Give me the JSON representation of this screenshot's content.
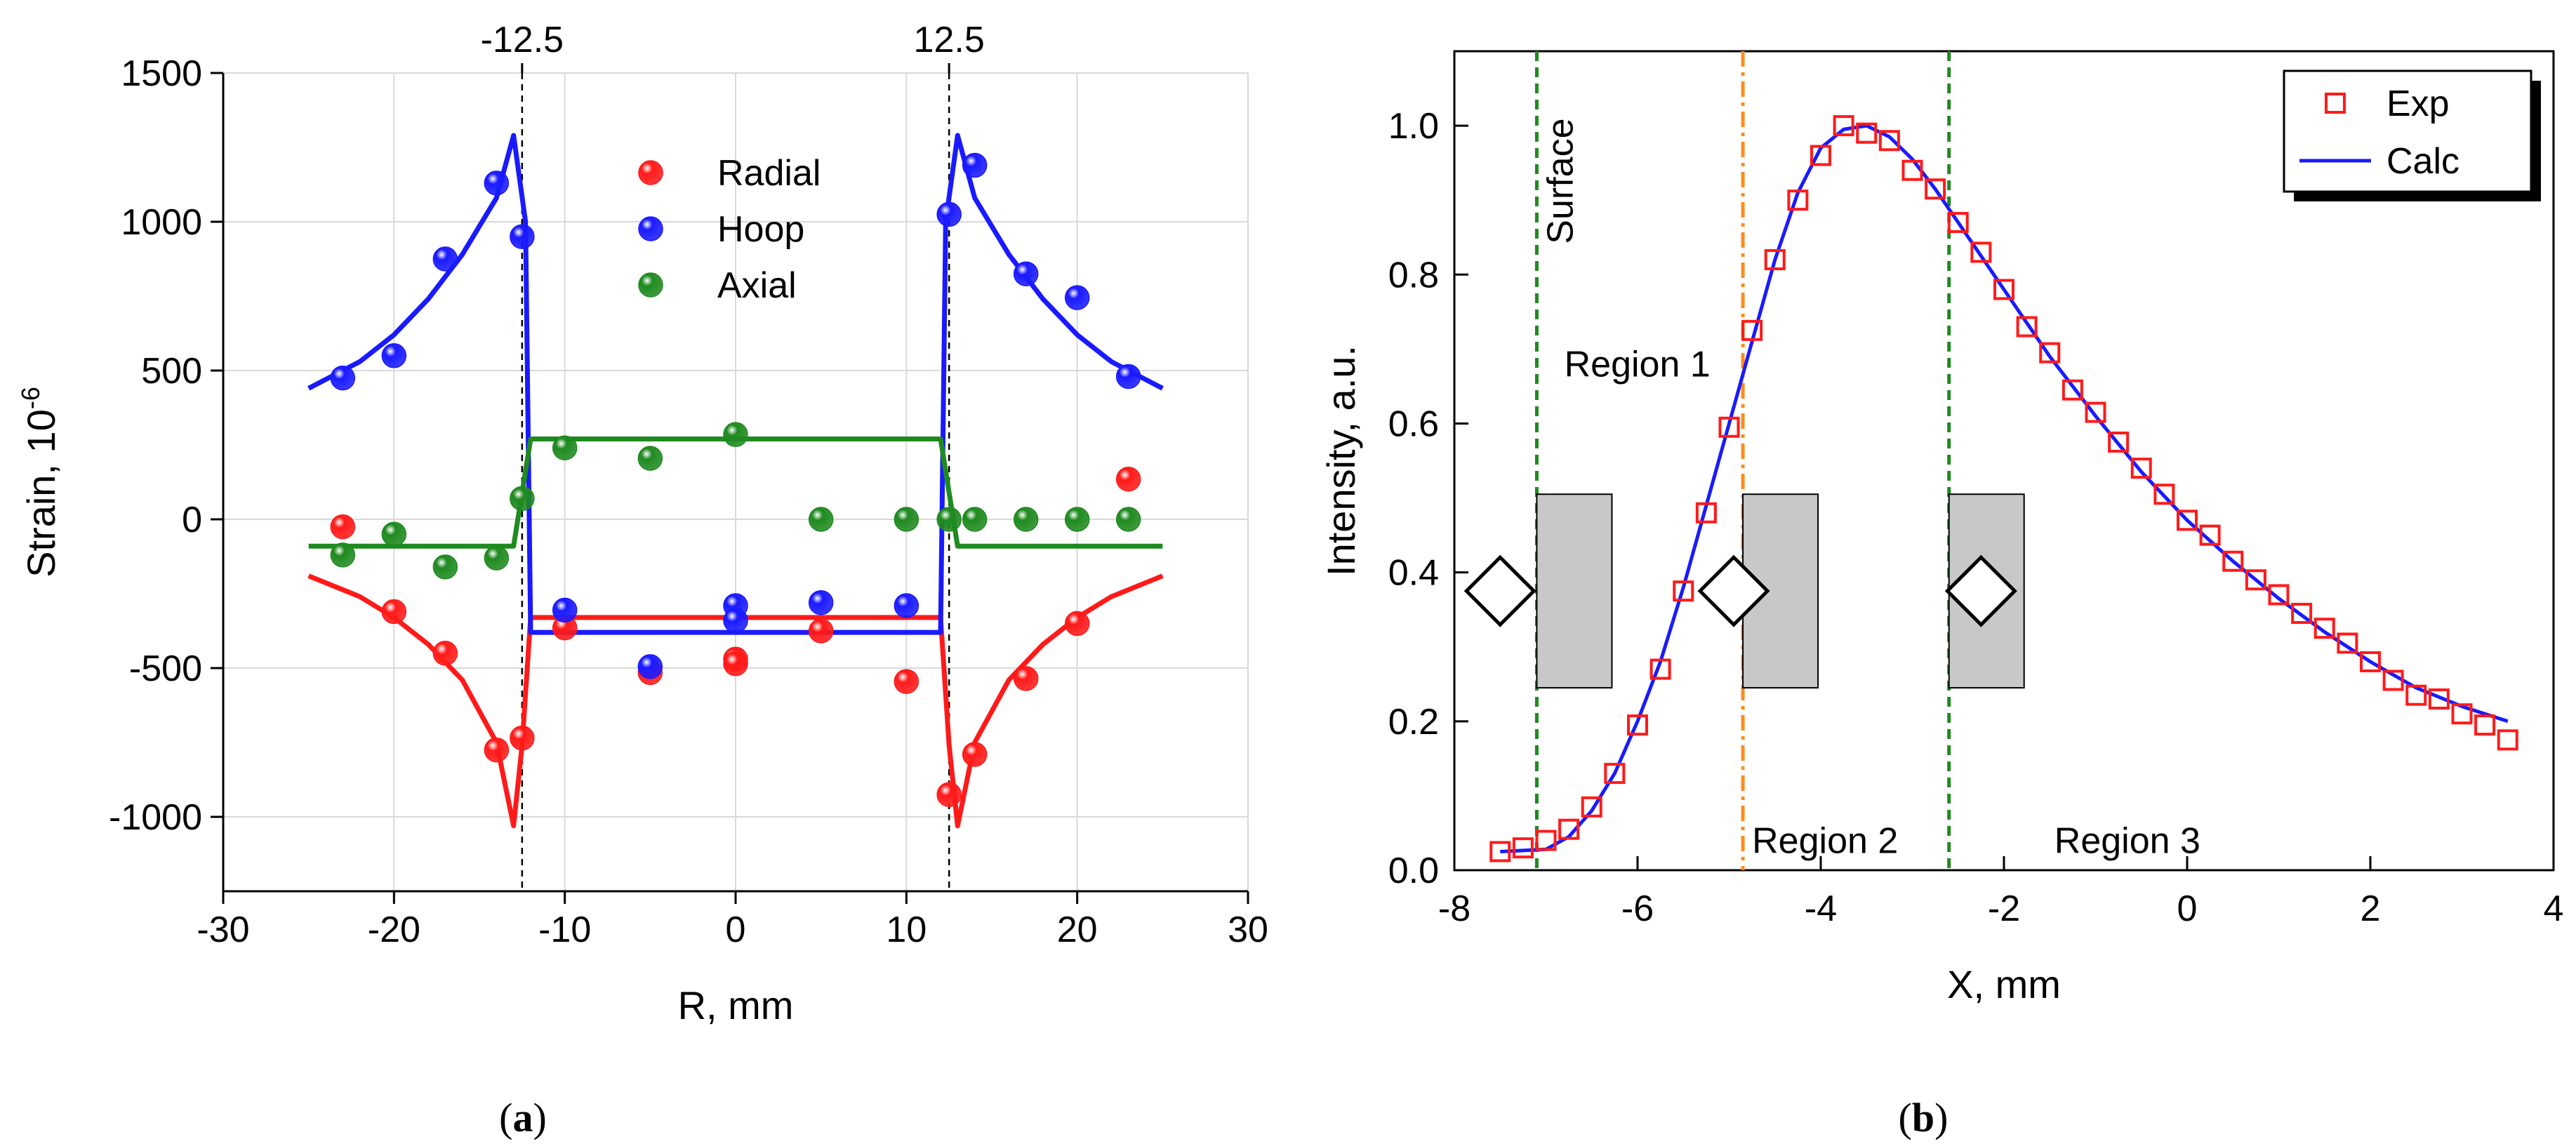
{
  "chart_data": [
    {
      "type": "scatter",
      "panel_label": "a",
      "xlabel": "R, mm",
      "ylabel": "Strain, 10",
      "ylabel_sup": "-6",
      "xlim": [
        -30,
        30
      ],
      "ylim": [
        -1250,
        1500
      ],
      "xticks": [
        -30,
        -20,
        -10,
        0,
        10,
        20,
        30
      ],
      "yticks": [
        -1000,
        -500,
        0,
        500,
        1000,
        1500
      ],
      "grid": true,
      "top_ticks": [
        -12.5,
        12.5
      ],
      "top_tick_labels": [
        "-12.5",
        "12.5"
      ],
      "legend_position": "top-center",
      "colors": {
        "Radial": "#ff1a1a",
        "Hoop": "#1a1aff",
        "Axial": "#1f8a1f"
      },
      "series": [
        {
          "name": "Radial",
          "points": [
            [
              -23,
              -25
            ],
            [
              -20,
              -310
            ],
            [
              -17,
              -450
            ],
            [
              -14,
              -775
            ],
            [
              -12.5,
              -735
            ],
            [
              -10,
              -365
            ],
            [
              -5,
              -515
            ],
            [
              0,
              -470
            ],
            [
              0,
              -485
            ],
            [
              5,
              -375
            ],
            [
              10,
              -545
            ],
            [
              12.5,
              -925
            ],
            [
              14,
              -790
            ],
            [
              17,
              -535
            ],
            [
              20,
              -350
            ],
            [
              23,
              135
            ]
          ],
          "fit": [
            [
              -25,
              -190
            ],
            [
              -22,
              -260
            ],
            [
              -20,
              -330
            ],
            [
              -18,
              -420
            ],
            [
              -16,
              -540
            ],
            [
              -14,
              -750
            ],
            [
              -13,
              -1030
            ],
            [
              -12.5,
              -760
            ],
            [
              -12,
              -330
            ],
            [
              12,
              -330
            ],
            [
              12.5,
              -760
            ],
            [
              13,
              -1030
            ],
            [
              14,
              -750
            ],
            [
              16,
              -540
            ],
            [
              18,
              -420
            ],
            [
              20,
              -330
            ],
            [
              22,
              -260
            ],
            [
              25,
              -190
            ]
          ]
        },
        {
          "name": "Hoop",
          "points": [
            [
              -23,
              475
            ],
            [
              -20,
              550
            ],
            [
              -17,
              875
            ],
            [
              -14,
              1130
            ],
            [
              -12.5,
              950
            ],
            [
              -10,
              -305
            ],
            [
              -5,
              -495
            ],
            [
              0,
              -290
            ],
            [
              0,
              -340
            ],
            [
              5,
              -280
            ],
            [
              10,
              -290
            ],
            [
              12.5,
              1025
            ],
            [
              14,
              1190
            ],
            [
              17,
              825
            ],
            [
              20,
              745
            ],
            [
              23,
              480
            ]
          ],
          "fit": [
            [
              -25,
              440
            ],
            [
              -22,
              530
            ],
            [
              -20,
              620
            ],
            [
              -18,
              740
            ],
            [
              -16,
              890
            ],
            [
              -14,
              1080
            ],
            [
              -13,
              1290
            ],
            [
              -12.3,
              1000
            ],
            [
              -12,
              -380
            ],
            [
              12,
              -380
            ],
            [
              12.3,
              1000
            ],
            [
              13,
              1290
            ],
            [
              14,
              1080
            ],
            [
              16,
              890
            ],
            [
              18,
              740
            ],
            [
              20,
              620
            ],
            [
              22,
              530
            ],
            [
              25,
              440
            ]
          ]
        },
        {
          "name": "Axial",
          "points": [
            [
              -23,
              -120
            ],
            [
              -20,
              -50
            ],
            [
              -17,
              -160
            ],
            [
              -14,
              -130
            ],
            [
              -12.5,
              70
            ],
            [
              -10,
              240
            ],
            [
              -5,
              205
            ],
            [
              0,
              285
            ],
            [
              5,
              0
            ],
            [
              10,
              0
            ],
            [
              12.5,
              0
            ],
            [
              14,
              0
            ],
            [
              17,
              0
            ],
            [
              20,
              0
            ],
            [
              23,
              0
            ]
          ],
          "fit": [
            [
              -25,
              -90
            ],
            [
              -13,
              -90
            ],
            [
              -12,
              270
            ],
            [
              12,
              270
            ],
            [
              13,
              -90
            ],
            [
              25,
              -90
            ]
          ]
        }
      ]
    },
    {
      "type": "scatter",
      "panel_label": "b",
      "xlabel": "X, mm",
      "ylabel": "Intensity, a.u.",
      "xlim": [
        -8,
        4
      ],
      "ylim": [
        0,
        1.1
      ],
      "xticks": [
        -8,
        -6,
        -4,
        -2,
        0,
        2,
        4
      ],
      "yticks": [
        0.0,
        0.2,
        0.4,
        0.6,
        0.8,
        1.0
      ],
      "ytick_labels": [
        "0.0",
        "0.2",
        "0.4",
        "0.6",
        "0.8",
        "1.0"
      ],
      "grid": false,
      "legend_position": "top-right",
      "colors": {
        "Exp": "#ff1a1a",
        "Calc": "#1a1aff",
        "boundary": "#1f8a1f",
        "mid": "#ff8c1a",
        "box": "#c8c8c8"
      },
      "vlines": [
        {
          "x": -7.1,
          "style": "dashed",
          "color": "boundary"
        },
        {
          "x": -4.85,
          "style": "dashdot",
          "color": "mid"
        },
        {
          "x": -2.6,
          "style": "dashed",
          "color": "boundary"
        }
      ],
      "annotations": [
        {
          "text": "Surface",
          "x": -7.0,
          "y": 1.01,
          "rotate": true
        },
        {
          "text": "Region 1",
          "x": -6.8,
          "y": 0.68
        },
        {
          "text": "Region 2",
          "x": -4.75,
          "y": 0.04
        },
        {
          "text": "Region 3",
          "x": -1.45,
          "y": 0.04
        }
      ],
      "gauge_boxes": [
        {
          "x0": -7.1,
          "x1": -6.28,
          "y0": 0.245,
          "y1": 0.505,
          "diamond_x": -7.5,
          "diamond_y": 0.375
        },
        {
          "x0": -4.85,
          "x1": -4.03,
          "y0": 0.245,
          "y1": 0.505,
          "diamond_x": -4.95,
          "diamond_y": 0.375
        },
        {
          "x0": -2.6,
          "x1": -1.78,
          "y0": 0.245,
          "y1": 0.505,
          "diamond_x": -2.25,
          "diamond_y": 0.375
        }
      ],
      "series": [
        {
          "name": "Exp",
          "points": [
            [
              -7.5,
              0.025
            ],
            [
              -7.25,
              0.03
            ],
            [
              -7.0,
              0.04
            ],
            [
              -6.75,
              0.055
            ],
            [
              -6.5,
              0.085
            ],
            [
              -6.25,
              0.13
            ],
            [
              -6.0,
              0.195
            ],
            [
              -5.75,
              0.27
            ],
            [
              -5.5,
              0.375
            ],
            [
              -5.25,
              0.48
            ],
            [
              -5.0,
              0.595
            ],
            [
              -4.75,
              0.725
            ],
            [
              -4.5,
              0.82
            ],
            [
              -4.25,
              0.9
            ],
            [
              -4.0,
              0.96
            ],
            [
              -3.75,
              1.0
            ],
            [
              -3.5,
              0.99
            ],
            [
              -3.25,
              0.98
            ],
            [
              -3.0,
              0.94
            ],
            [
              -2.75,
              0.915
            ],
            [
              -2.5,
              0.87
            ],
            [
              -2.25,
              0.83
            ],
            [
              -2.0,
              0.78
            ],
            [
              -1.75,
              0.73
            ],
            [
              -1.5,
              0.695
            ],
            [
              -1.25,
              0.645
            ],
            [
              -1.0,
              0.615
            ],
            [
              -0.75,
              0.575
            ],
            [
              -0.5,
              0.54
            ],
            [
              -0.25,
              0.505
            ],
            [
              0.0,
              0.47
            ],
            [
              0.25,
              0.45
            ],
            [
              0.5,
              0.415
            ],
            [
              0.75,
              0.39
            ],
            [
              1.0,
              0.37
            ],
            [
              1.25,
              0.345
            ],
            [
              1.5,
              0.325
            ],
            [
              1.75,
              0.305
            ],
            [
              2.0,
              0.28
            ],
            [
              2.25,
              0.255
            ],
            [
              2.5,
              0.235
            ],
            [
              2.75,
              0.23
            ],
            [
              3.0,
              0.21
            ],
            [
              3.25,
              0.195
            ],
            [
              3.5,
              0.175
            ]
          ]
        },
        {
          "name": "Calc",
          "points": [
            [
              -7.5,
              0.025
            ],
            [
              -7.0,
              0.028
            ],
            [
              -6.75,
              0.045
            ],
            [
              -6.5,
              0.08
            ],
            [
              -6.25,
              0.13
            ],
            [
              -6.0,
              0.2
            ],
            [
              -5.75,
              0.28
            ],
            [
              -5.5,
              0.38
            ],
            [
              -5.25,
              0.49
            ],
            [
              -5.0,
              0.6
            ],
            [
              -4.75,
              0.71
            ],
            [
              -4.5,
              0.82
            ],
            [
              -4.25,
              0.91
            ],
            [
              -4.0,
              0.97
            ],
            [
              -3.75,
              0.995
            ],
            [
              -3.5,
              1.0
            ],
            [
              -3.25,
              0.985
            ],
            [
              -3.0,
              0.955
            ],
            [
              -2.75,
              0.915
            ],
            [
              -2.5,
              0.87
            ],
            [
              -2.0,
              0.78
            ],
            [
              -1.5,
              0.69
            ],
            [
              -1.0,
              0.61
            ],
            [
              -0.5,
              0.535
            ],
            [
              0.0,
              0.47
            ],
            [
              0.5,
              0.415
            ],
            [
              1.0,
              0.365
            ],
            [
              1.5,
              0.32
            ],
            [
              2.0,
              0.28
            ],
            [
              2.5,
              0.245
            ],
            [
              3.0,
              0.22
            ],
            [
              3.5,
              0.2
            ]
          ]
        }
      ]
    }
  ]
}
